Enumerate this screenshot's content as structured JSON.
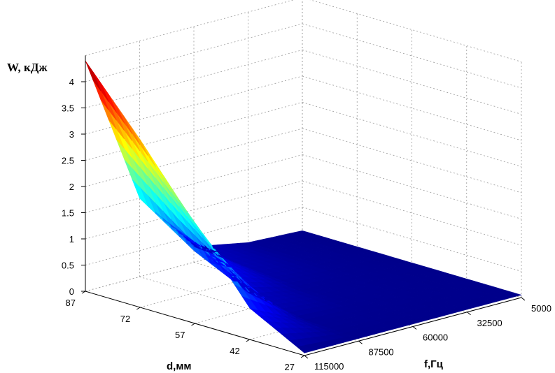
{
  "chart_data": {
    "type": "surface",
    "zlabel": "W, кДж",
    "xlabel": "f,Гц",
    "ylabel": "d,мм",
    "f_ticks": [
      "115000",
      "87500",
      "60000",
      "32500",
      "5000"
    ],
    "d_ticks": [
      "87",
      "72",
      "57",
      "42",
      "27"
    ],
    "z_ticks": [
      "0",
      "0.5",
      "1",
      "1.5",
      "2",
      "2.5",
      "3",
      "3.5",
      "4"
    ],
    "f_range": [
      5000,
      115000
    ],
    "d_range": [
      27,
      87
    ],
    "z_range": [
      0,
      4.5
    ],
    "grid": true,
    "colormap": "jet",
    "surface": {
      "f": [
        5000,
        32500,
        60000,
        87500,
        115000
      ],
      "d": [
        27,
        42,
        57,
        72,
        87
      ],
      "z": [
        [
          0.05,
          0.05,
          0.05,
          0.05,
          0.05
        ],
        [
          0.05,
          0.06,
          0.07,
          0.1,
          0.6
        ],
        [
          0.05,
          0.07,
          0.1,
          0.3,
          1.9
        ],
        [
          0.05,
          0.09,
          0.2,
          0.8,
          3.2
        ],
        [
          0.05,
          0.1,
          0.3,
          1.5,
          4.4
        ]
      ]
    }
  }
}
